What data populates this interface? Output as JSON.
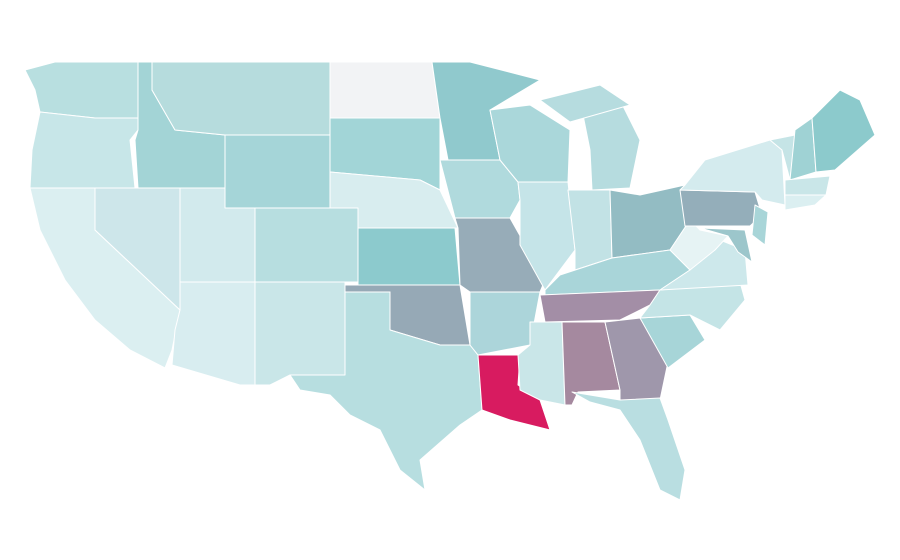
{
  "map": {
    "regions": [
      {
        "color": "#b8dfe0"
      },
      {
        "color": "#c7e6e8"
      },
      {
        "color": "#dbeff1"
      },
      {
        "color": "#cde6ea"
      },
      {
        "color": "#a3d4d6"
      },
      {
        "color": "#b6dcdd"
      },
      {
        "color": "#a5d5d8"
      },
      {
        "color": "#d2eaed"
      },
      {
        "color": "#d8edf0"
      },
      {
        "color": "#b7dee0"
      },
      {
        "color": "#c9e6e8"
      },
      {
        "color": "#f2f3f5"
      },
      {
        "color": "#a2d5d7"
      },
      {
        "color": "#d8edef"
      },
      {
        "color": "#8ccacd"
      },
      {
        "color": "#96a9b6"
      },
      {
        "color": "#b7dee0"
      },
      {
        "color": "#90c9cd"
      },
      {
        "color": "#b0dadd"
      },
      {
        "color": "#97acb8"
      },
      {
        "color": "#acd5da"
      },
      {
        "color": "#d81b60"
      },
      {
        "color": "#aad7da"
      },
      {
        "color": "#c5e4e8"
      },
      {
        "color": "#b6dcdf"
      },
      {
        "color": "#c2e2e5"
      },
      {
        "color": "#93bcc3"
      },
      {
        "color": "#a9d5d9"
      },
      {
        "color": "#a38ea6"
      },
      {
        "color": "#c9e6e8"
      },
      {
        "color": "#a5899f"
      },
      {
        "color": "#9f97ab"
      },
      {
        "color": "#b9dee1"
      },
      {
        "color": "#a7d5d8"
      },
      {
        "color": "#c4e4e6"
      },
      {
        "color": "#cde8eb"
      },
      {
        "color": "#e6f3f4"
      },
      {
        "color": "#94aeba"
      },
      {
        "color": "#a8d5d8"
      },
      {
        "color": "#9cc6cb"
      },
      {
        "color": "#d4ebee"
      },
      {
        "color": "#c5e4e6"
      },
      {
        "color": "#9fd2d4"
      },
      {
        "color": "#8ccacc"
      },
      {
        "color": "#c9e6e8"
      },
      {
        "color": "#dbeff1"
      }
    ]
  }
}
